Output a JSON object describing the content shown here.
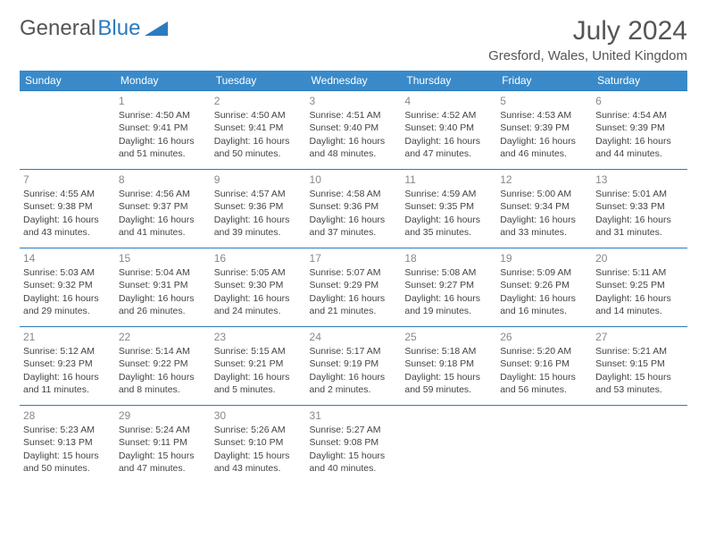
{
  "brand": {
    "part1": "General",
    "part2": "Blue"
  },
  "title": "July 2024",
  "location": "Gresford, Wales, United Kingdom",
  "colors": {
    "header_bg": "#3a8ac9",
    "border": "#2b7bbf",
    "text": "#444444",
    "daynum": "#888888"
  },
  "weekdays": [
    "Sunday",
    "Monday",
    "Tuesday",
    "Wednesday",
    "Thursday",
    "Friday",
    "Saturday"
  ],
  "weeks": [
    [
      null,
      {
        "n": "1",
        "sr": "Sunrise: 4:50 AM",
        "ss": "Sunset: 9:41 PM",
        "d1": "Daylight: 16 hours",
        "d2": "and 51 minutes."
      },
      {
        "n": "2",
        "sr": "Sunrise: 4:50 AM",
        "ss": "Sunset: 9:41 PM",
        "d1": "Daylight: 16 hours",
        "d2": "and 50 minutes."
      },
      {
        "n": "3",
        "sr": "Sunrise: 4:51 AM",
        "ss": "Sunset: 9:40 PM",
        "d1": "Daylight: 16 hours",
        "d2": "and 48 minutes."
      },
      {
        "n": "4",
        "sr": "Sunrise: 4:52 AM",
        "ss": "Sunset: 9:40 PM",
        "d1": "Daylight: 16 hours",
        "d2": "and 47 minutes."
      },
      {
        "n": "5",
        "sr": "Sunrise: 4:53 AM",
        "ss": "Sunset: 9:39 PM",
        "d1": "Daylight: 16 hours",
        "d2": "and 46 minutes."
      },
      {
        "n": "6",
        "sr": "Sunrise: 4:54 AM",
        "ss": "Sunset: 9:39 PM",
        "d1": "Daylight: 16 hours",
        "d2": "and 44 minutes."
      }
    ],
    [
      {
        "n": "7",
        "sr": "Sunrise: 4:55 AM",
        "ss": "Sunset: 9:38 PM",
        "d1": "Daylight: 16 hours",
        "d2": "and 43 minutes."
      },
      {
        "n": "8",
        "sr": "Sunrise: 4:56 AM",
        "ss": "Sunset: 9:37 PM",
        "d1": "Daylight: 16 hours",
        "d2": "and 41 minutes."
      },
      {
        "n": "9",
        "sr": "Sunrise: 4:57 AM",
        "ss": "Sunset: 9:36 PM",
        "d1": "Daylight: 16 hours",
        "d2": "and 39 minutes."
      },
      {
        "n": "10",
        "sr": "Sunrise: 4:58 AM",
        "ss": "Sunset: 9:36 PM",
        "d1": "Daylight: 16 hours",
        "d2": "and 37 minutes."
      },
      {
        "n": "11",
        "sr": "Sunrise: 4:59 AM",
        "ss": "Sunset: 9:35 PM",
        "d1": "Daylight: 16 hours",
        "d2": "and 35 minutes."
      },
      {
        "n": "12",
        "sr": "Sunrise: 5:00 AM",
        "ss": "Sunset: 9:34 PM",
        "d1": "Daylight: 16 hours",
        "d2": "and 33 minutes."
      },
      {
        "n": "13",
        "sr": "Sunrise: 5:01 AM",
        "ss": "Sunset: 9:33 PM",
        "d1": "Daylight: 16 hours",
        "d2": "and 31 minutes."
      }
    ],
    [
      {
        "n": "14",
        "sr": "Sunrise: 5:03 AM",
        "ss": "Sunset: 9:32 PM",
        "d1": "Daylight: 16 hours",
        "d2": "and 29 minutes."
      },
      {
        "n": "15",
        "sr": "Sunrise: 5:04 AM",
        "ss": "Sunset: 9:31 PM",
        "d1": "Daylight: 16 hours",
        "d2": "and 26 minutes."
      },
      {
        "n": "16",
        "sr": "Sunrise: 5:05 AM",
        "ss": "Sunset: 9:30 PM",
        "d1": "Daylight: 16 hours",
        "d2": "and 24 minutes."
      },
      {
        "n": "17",
        "sr": "Sunrise: 5:07 AM",
        "ss": "Sunset: 9:29 PM",
        "d1": "Daylight: 16 hours",
        "d2": "and 21 minutes."
      },
      {
        "n": "18",
        "sr": "Sunrise: 5:08 AM",
        "ss": "Sunset: 9:27 PM",
        "d1": "Daylight: 16 hours",
        "d2": "and 19 minutes."
      },
      {
        "n": "19",
        "sr": "Sunrise: 5:09 AM",
        "ss": "Sunset: 9:26 PM",
        "d1": "Daylight: 16 hours",
        "d2": "and 16 minutes."
      },
      {
        "n": "20",
        "sr": "Sunrise: 5:11 AM",
        "ss": "Sunset: 9:25 PM",
        "d1": "Daylight: 16 hours",
        "d2": "and 14 minutes."
      }
    ],
    [
      {
        "n": "21",
        "sr": "Sunrise: 5:12 AM",
        "ss": "Sunset: 9:23 PM",
        "d1": "Daylight: 16 hours",
        "d2": "and 11 minutes."
      },
      {
        "n": "22",
        "sr": "Sunrise: 5:14 AM",
        "ss": "Sunset: 9:22 PM",
        "d1": "Daylight: 16 hours",
        "d2": "and 8 minutes."
      },
      {
        "n": "23",
        "sr": "Sunrise: 5:15 AM",
        "ss": "Sunset: 9:21 PM",
        "d1": "Daylight: 16 hours",
        "d2": "and 5 minutes."
      },
      {
        "n": "24",
        "sr": "Sunrise: 5:17 AM",
        "ss": "Sunset: 9:19 PM",
        "d1": "Daylight: 16 hours",
        "d2": "and 2 minutes."
      },
      {
        "n": "25",
        "sr": "Sunrise: 5:18 AM",
        "ss": "Sunset: 9:18 PM",
        "d1": "Daylight: 15 hours",
        "d2": "and 59 minutes."
      },
      {
        "n": "26",
        "sr": "Sunrise: 5:20 AM",
        "ss": "Sunset: 9:16 PM",
        "d1": "Daylight: 15 hours",
        "d2": "and 56 minutes."
      },
      {
        "n": "27",
        "sr": "Sunrise: 5:21 AM",
        "ss": "Sunset: 9:15 PM",
        "d1": "Daylight: 15 hours",
        "d2": "and 53 minutes."
      }
    ],
    [
      {
        "n": "28",
        "sr": "Sunrise: 5:23 AM",
        "ss": "Sunset: 9:13 PM",
        "d1": "Daylight: 15 hours",
        "d2": "and 50 minutes."
      },
      {
        "n": "29",
        "sr": "Sunrise: 5:24 AM",
        "ss": "Sunset: 9:11 PM",
        "d1": "Daylight: 15 hours",
        "d2": "and 47 minutes."
      },
      {
        "n": "30",
        "sr": "Sunrise: 5:26 AM",
        "ss": "Sunset: 9:10 PM",
        "d1": "Daylight: 15 hours",
        "d2": "and 43 minutes."
      },
      {
        "n": "31",
        "sr": "Sunrise: 5:27 AM",
        "ss": "Sunset: 9:08 PM",
        "d1": "Daylight: 15 hours",
        "d2": "and 40 minutes."
      },
      null,
      null,
      null
    ]
  ]
}
